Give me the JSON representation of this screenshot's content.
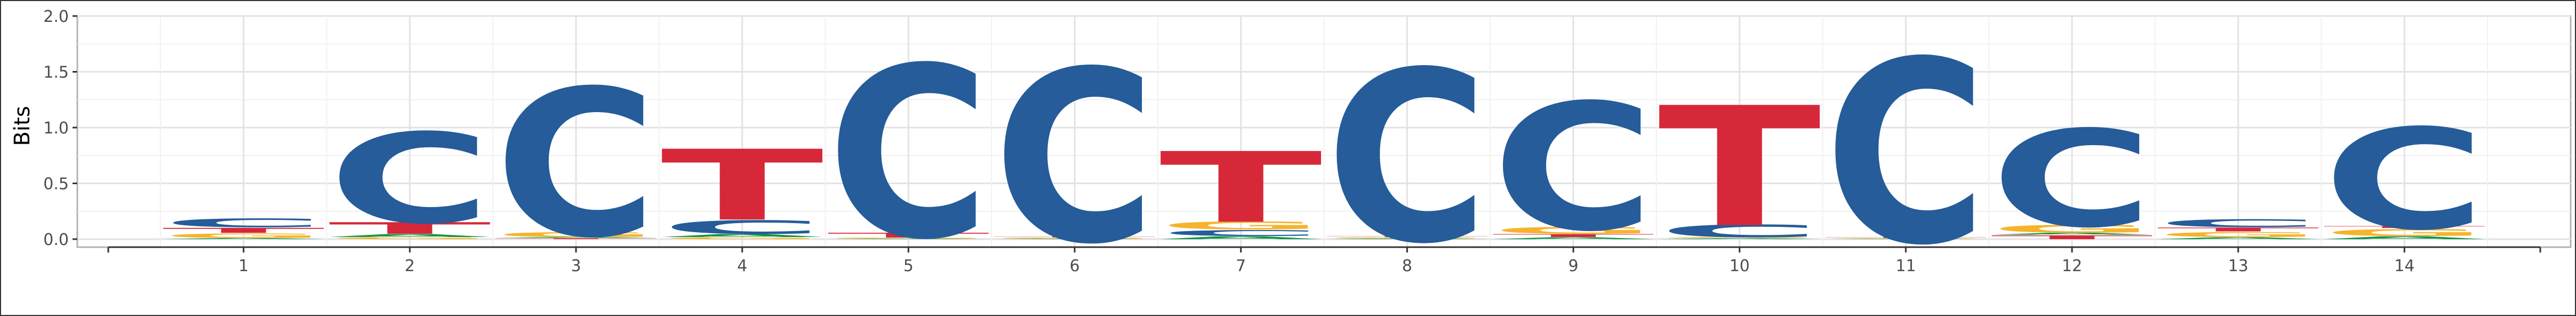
{
  "chart_data": {
    "type": "sequence-logo",
    "ylabel": "Bits",
    "ylim": [
      0,
      2
    ],
    "yticks": [
      "0.0",
      "0.5",
      "1.0",
      "1.5",
      "2.0"
    ],
    "positions": [
      "1",
      "2",
      "3",
      "4",
      "5",
      "6",
      "7",
      "8",
      "9",
      "10",
      "11",
      "12",
      "13",
      "14"
    ],
    "colors": {
      "A": "#109648",
      "C": "#255C99",
      "G": "#F7B32B",
      "T": "#D62839"
    },
    "grid": true,
    "stacks": [
      [
        {
          "letter": "A",
          "bits": 0.012
        },
        {
          "letter": "G",
          "bits": 0.045
        },
        {
          "letter": "T",
          "bits": 0.052
        },
        {
          "letter": "C",
          "bits": 0.09
        }
      ],
      [
        {
          "letter": "G",
          "bits": 0.02
        },
        {
          "letter": "A",
          "bits": 0.03
        },
        {
          "letter": "T",
          "bits": 0.12
        },
        {
          "letter": "C",
          "bits": 0.93
        }
      ],
      [
        {
          "letter": "T",
          "bits": 0.01
        },
        {
          "letter": "A",
          "bits": 0.01
        },
        {
          "letter": "G",
          "bits": 0.05
        },
        {
          "letter": "C",
          "bits": 1.52
        }
      ],
      [
        {
          "letter": "G",
          "bits": 0.02
        },
        {
          "letter": "A",
          "bits": 0.03
        },
        {
          "letter": "C",
          "bits": 0.14
        },
        {
          "letter": "T",
          "bits": 0.73
        }
      ],
      [
        {
          "letter": "A",
          "bits": 0.005
        },
        {
          "letter": "G",
          "bits": 0.01
        },
        {
          "letter": "T",
          "bits": 0.05
        },
        {
          "letter": "C",
          "bits": 1.77
        }
      ],
      [
        {
          "letter": "A",
          "bits": 0.005
        },
        {
          "letter": "G",
          "bits": 0.01
        },
        {
          "letter": "T",
          "bits": 0.01
        },
        {
          "letter": "C",
          "bits": 1.78
        }
      ],
      [
        {
          "letter": "A",
          "bits": 0.03
        },
        {
          "letter": "C",
          "bits": 0.06
        },
        {
          "letter": "G",
          "bits": 0.08
        },
        {
          "letter": "T",
          "bits": 0.73
        }
      ],
      [
        {
          "letter": "A",
          "bits": 0.008
        },
        {
          "letter": "G",
          "bits": 0.01
        },
        {
          "letter": "T",
          "bits": 0.01
        },
        {
          "letter": "C",
          "bits": 1.77
        }
      ],
      [
        {
          "letter": "A",
          "bits": 0.02
        },
        {
          "letter": "T",
          "bits": 0.03
        },
        {
          "letter": "G",
          "bits": 0.07
        },
        {
          "letter": "C",
          "bits": 1.31
        }
      ],
      [
        {
          "letter": "A",
          "bits": 0.01
        },
        {
          "letter": "G",
          "bits": 0.01
        },
        {
          "letter": "C",
          "bits": 0.13
        },
        {
          "letter": "T",
          "bits": 1.24
        }
      ],
      [
        {
          "letter": "A",
          "bits": 0.004
        },
        {
          "letter": "G",
          "bits": 0.006
        },
        {
          "letter": "T",
          "bits": 0.01
        },
        {
          "letter": "C",
          "bits": 1.89
        }
      ],
      [
        {
          "letter": "T",
          "bits": 0.04
        },
        {
          "letter": "A",
          "bits": 0.02
        },
        {
          "letter": "G",
          "bits": 0.08
        },
        {
          "letter": "C",
          "bits": 1.0
        }
      ],
      [
        {
          "letter": "A",
          "bits": 0.02
        },
        {
          "letter": "G",
          "bits": 0.05
        },
        {
          "letter": "T",
          "bits": 0.04
        },
        {
          "letter": "C",
          "bits": 0.08
        }
      ],
      [
        {
          "letter": "A",
          "bits": 0.03
        },
        {
          "letter": "G",
          "bits": 0.07
        },
        {
          "letter": "T",
          "bits": 0.02
        },
        {
          "letter": "C",
          "bits": 1.04
        }
      ]
    ]
  }
}
